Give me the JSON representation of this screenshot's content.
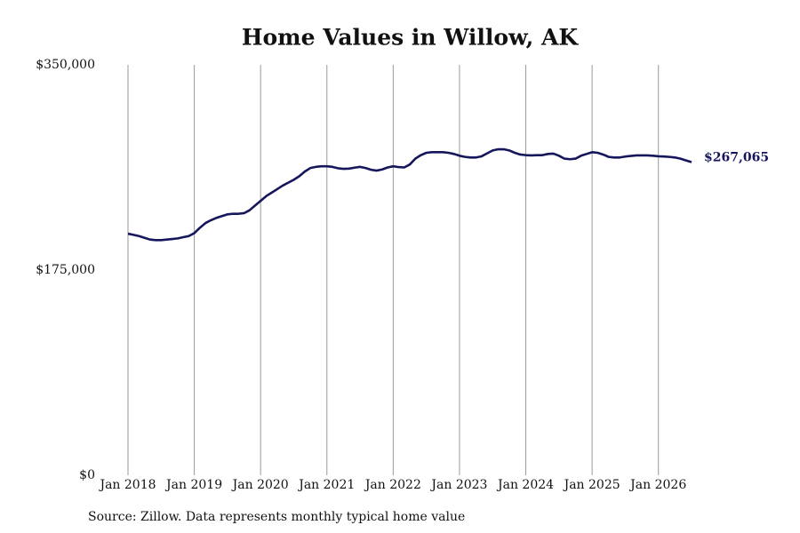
{
  "chart_data": {
    "type": "line",
    "title": "Home Values in Willow, AK",
    "source": "Source: Zillow. Data represents monthly typical home value",
    "x": [
      "2018-01",
      "2018-02",
      "2018-03",
      "2018-04",
      "2018-05",
      "2018-06",
      "2018-07",
      "2018-08",
      "2018-09",
      "2018-10",
      "2018-11",
      "2018-12",
      "2019-01",
      "2019-02",
      "2019-03",
      "2019-04",
      "2019-05",
      "2019-06",
      "2019-07",
      "2019-08",
      "2019-09",
      "2019-10",
      "2019-11",
      "2019-12",
      "2020-01",
      "2020-02",
      "2020-03",
      "2020-04",
      "2020-05",
      "2020-06",
      "2020-07",
      "2020-08",
      "2020-09",
      "2020-10",
      "2020-11",
      "2020-12",
      "2021-01",
      "2021-02",
      "2021-03",
      "2021-04",
      "2021-05",
      "2021-06",
      "2021-07",
      "2021-08",
      "2021-09",
      "2021-10",
      "2021-11",
      "2021-12",
      "2022-01",
      "2022-02",
      "2022-03",
      "2022-04",
      "2022-05",
      "2022-06",
      "2022-07",
      "2022-08",
      "2022-09",
      "2022-10",
      "2022-11",
      "2022-12",
      "2023-01",
      "2023-02",
      "2023-03",
      "2023-04",
      "2023-05",
      "2023-06",
      "2023-07",
      "2023-08",
      "2023-09",
      "2023-10",
      "2023-11",
      "2023-12",
      "2024-01",
      "2024-02",
      "2024-03",
      "2024-04",
      "2024-05",
      "2024-06",
      "2024-07",
      "2024-08",
      "2024-09",
      "2024-10",
      "2024-11",
      "2024-12",
      "2025-01",
      "2025-02",
      "2025-03",
      "2025-04",
      "2025-05",
      "2025-06",
      "2025-07",
      "2025-08",
      "2025-09",
      "2025-10",
      "2025-11",
      "2025-12",
      "2026-01",
      "2026-02",
      "2026-03",
      "2026-04",
      "2026-05",
      "2026-06",
      "2026-07"
    ],
    "series": [
      {
        "name": "Home value",
        "color": "#16165c",
        "values": [
          206000,
          205000,
          204000,
          202500,
          201000,
          200500,
          200500,
          201000,
          201500,
          202000,
          203000,
          204000,
          206500,
          211000,
          215000,
          217500,
          219500,
          221000,
          222500,
          223000,
          223000,
          223500,
          226000,
          230000,
          234000,
          238000,
          241000,
          244000,
          247000,
          249500,
          252000,
          255000,
          259000,
          262000,
          263000,
          263500,
          263500,
          263000,
          261800,
          261300,
          261500,
          262300,
          263000,
          262000,
          260500,
          259800,
          260800,
          262500,
          263500,
          262800,
          262500,
          265000,
          270000,
          273000,
          275000,
          275500,
          275500,
          275500,
          275000,
          274000,
          272500,
          271500,
          271000,
          271000,
          272000,
          274500,
          277000,
          278000,
          278000,
          277000,
          275000,
          273500,
          273000,
          272800,
          273000,
          273000,
          274000,
          274300,
          272500,
          270000,
          269500,
          270000,
          272500,
          274000,
          275500,
          275000,
          273500,
          271500,
          271000,
          271000,
          271800,
          272300,
          272800,
          272800,
          272800,
          272500,
          272000,
          271800,
          271500,
          271000,
          270000,
          268500,
          267065
        ]
      }
    ],
    "annotations": [
      {
        "x": "2026-07",
        "value": 267065,
        "label": "$267,065"
      }
    ],
    "xlim": [
      "2018-01",
      "2026-07"
    ],
    "xticks": [
      {
        "value": "2018-01",
        "label": "Jan 2018"
      },
      {
        "value": "2019-01",
        "label": "Jan 2019"
      },
      {
        "value": "2020-01",
        "label": "Jan 2020"
      },
      {
        "value": "2021-01",
        "label": "Jan 2021"
      },
      {
        "value": "2022-01",
        "label": "Jan 2022"
      },
      {
        "value": "2023-01",
        "label": "Jan 2023"
      },
      {
        "value": "2024-01",
        "label": "Jan 2024"
      },
      {
        "value": "2025-01",
        "label": "Jan 2025"
      },
      {
        "value": "2026-01",
        "label": "Jan 2026"
      }
    ],
    "ylim": [
      0,
      350000
    ],
    "yticks": [
      {
        "value": 0,
        "label": "$0"
      },
      {
        "value": 175000,
        "label": "$175,000"
      },
      {
        "value": 350000,
        "label": "$350,000"
      }
    ],
    "grid": "x"
  }
}
